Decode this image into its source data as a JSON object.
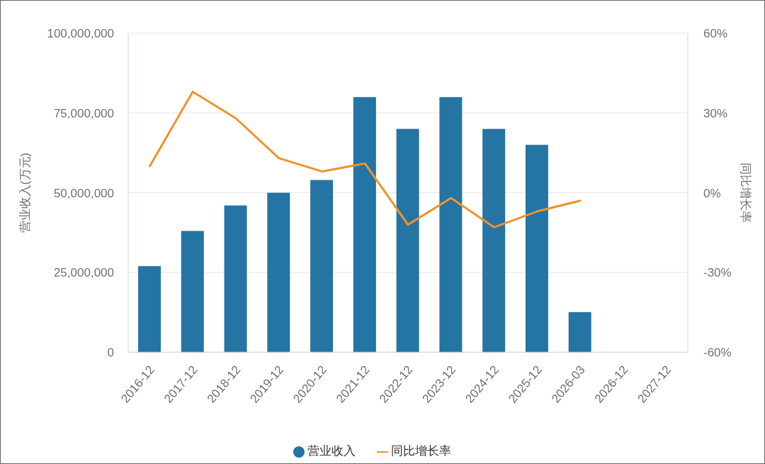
{
  "chart_data": {
    "type": "bar",
    "categories": [
      "2016-12",
      "2017-12",
      "2018-12",
      "2019-12",
      "2020-12",
      "2021-12",
      "2022-12",
      "2023-12",
      "2024-12",
      "2025-12",
      "2026-03",
      "2026-12",
      "2027-12"
    ],
    "ylabel": "营业收入(万元)",
    "y2label": "同比增长率",
    "series": [
      {
        "name": "营业收入",
        "color": "#2474a4",
        "values": [
          27000000,
          38000000,
          46000000,
          50000000,
          54000000,
          80000000,
          70000000,
          80000000,
          70000000,
          65000000,
          12600000,
          null,
          null
        ]
      },
      {
        "name": "同比增长率",
        "type": "line",
        "axis": "y2",
        "color": "#f0922b",
        "values": [
          10,
          38,
          28,
          13,
          8,
          11,
          -12,
          -2,
          -13,
          -7,
          -3,
          null,
          null
        ]
      }
    ],
    "ylim": [
      0,
      100000000
    ],
    "yticks": [
      0,
      {
        "value": 25000000,
        "label": "25,000,000"
      },
      {
        "value": 50000000,
        "label": "50,000,000"
      },
      {
        "value": 75000000,
        "label": "75,000,000"
      },
      {
        "value": 100000000,
        "label": "100,000,000"
      }
    ],
    "y2lim": [
      -60,
      60
    ],
    "y2ticks": [
      {
        "value": -60,
        "label": "-60%"
      },
      {
        "value": -30,
        "label": "-30%"
      },
      {
        "value": 0,
        "label": "0%"
      },
      {
        "value": 30,
        "label": "30%"
      },
      {
        "value": 60,
        "label": "60%"
      }
    ],
    "grid": "y",
    "legend": "bottom",
    "marker": "none",
    "line_style": "solid"
  }
}
